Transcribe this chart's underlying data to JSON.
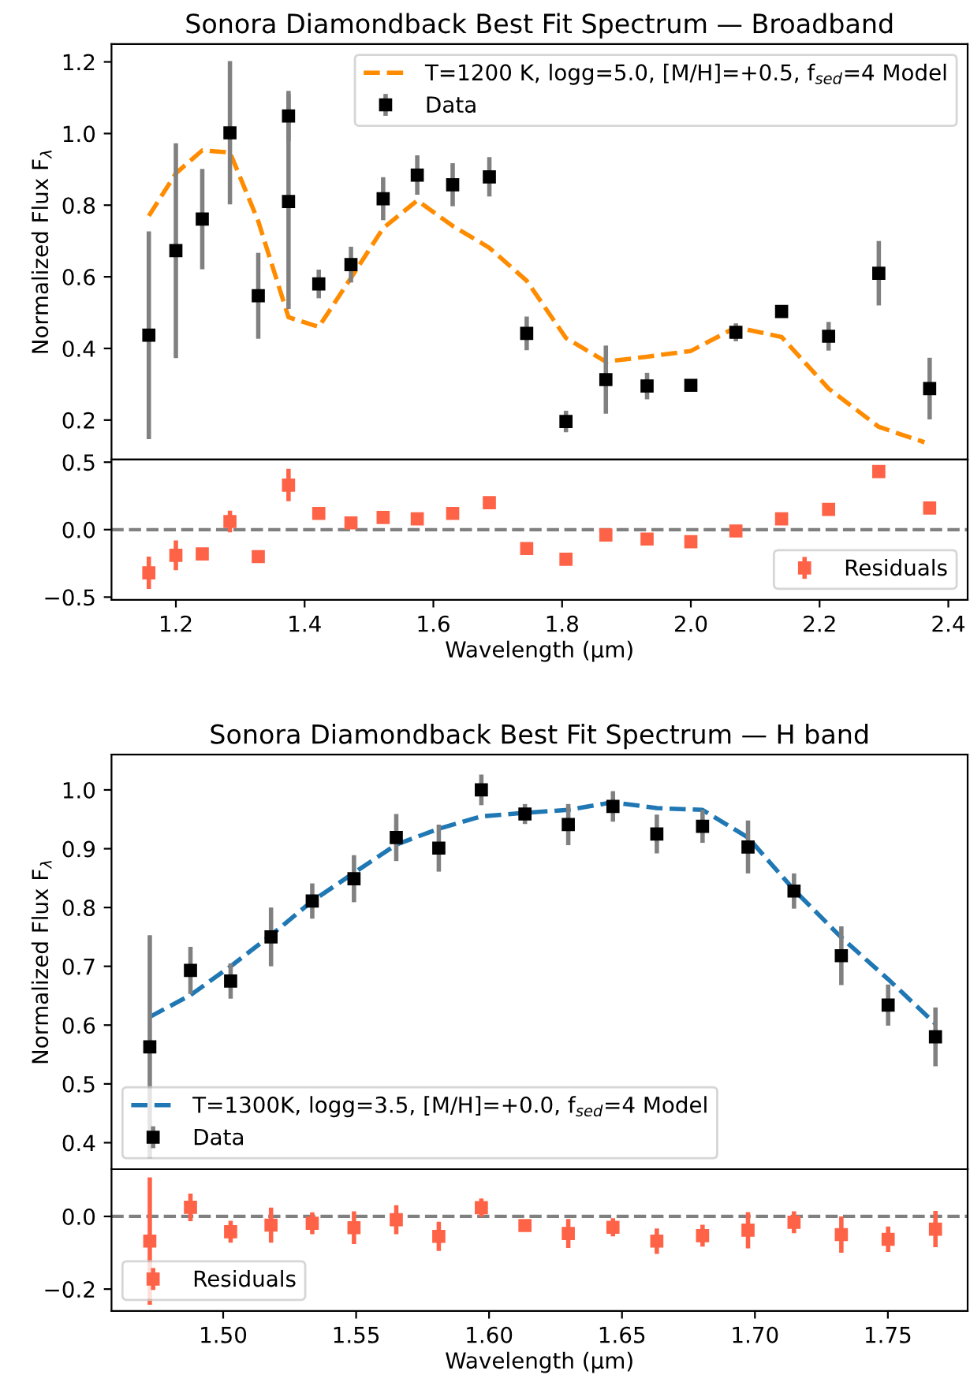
{
  "chart_data": [
    {
      "type": "scatter",
      "title": "Sonora Diamondback Best Fit Spectrum — Broadband",
      "ylabel": "Normalized Flux F$_{λ}$",
      "xlim": [
        1.1,
        2.43
      ],
      "ylim": [
        0.09,
        1.25
      ],
      "xticks": [
        1.2,
        1.4,
        1.6,
        1.8,
        2.0,
        2.2,
        2.4
      ],
      "yticks": [
        {
          "value": 0.2,
          "label": "0.2"
        },
        {
          "value": 0.4,
          "label": "0.4"
        },
        {
          "value": 0.6,
          "label": "0.6"
        },
        {
          "value": 0.8,
          "label": "0.8"
        },
        {
          "value": 1.0,
          "label": "1.0"
        },
        {
          "value": 1.2,
          "label": "1.2"
        }
      ],
      "tick_labels": "y",
      "legend": "top right",
      "series": [
        {
          "type": "line",
          "name": "T=1200 K, logg=5.0, [M/H]=+0.5, f$_{sed}$=4 Model",
          "color": "#ff8c00",
          "line_style": "dashed",
          "marker": "none",
          "x": [
            1.158,
            1.2,
            1.241,
            1.284,
            1.328,
            1.375,
            1.422,
            1.472,
            1.522,
            1.575,
            1.63,
            1.687,
            1.745,
            1.806,
            1.868,
            1.932,
            2.0,
            2.07,
            2.141,
            2.214,
            2.292,
            2.363
          ],
          "values": [
            0.77,
            0.889,
            0.953,
            0.947,
            0.755,
            0.487,
            0.46,
            0.597,
            0.736,
            0.813,
            0.742,
            0.681,
            0.589,
            0.429,
            0.363,
            0.377,
            0.393,
            0.459,
            0.432,
            0.288,
            0.181,
            0.138
          ]
        },
        {
          "name": "Data",
          "color": "#000000",
          "marker": "square",
          "x": [
            1.158,
            1.2,
            1.241,
            1.284,
            1.328,
            1.375,
            1.375,
            1.422,
            1.472,
            1.522,
            1.575,
            1.63,
            1.687,
            1.745,
            1.806,
            1.868,
            1.932,
            2.0,
            2.07,
            2.141,
            2.214,
            2.292,
            2.371
          ],
          "values": [
            0.437,
            0.673,
            0.761,
            1.002,
            0.547,
            1.049,
            0.81,
            0.58,
            0.634,
            0.818,
            0.884,
            0.857,
            0.879,
            0.442,
            0.196,
            0.313,
            0.295,
            0.297,
            0.445,
            0.503,
            0.434,
            0.61,
            0.288
          ],
          "errors": [
            0.29,
            0.3,
            0.14,
            0.2,
            0.12,
            0.07,
            0.3,
            0.04,
            0.05,
            0.06,
            0.055,
            0.06,
            0.055,
            0.047,
            0.03,
            0.095,
            0.037,
            0.015,
            0.025,
            0.01,
            0.04,
            0.09,
            0.086
          ]
        }
      ]
    },
    {
      "type": "scatter",
      "xlabel": "Wavelength (μm)",
      "xlim": [
        1.1,
        2.43
      ],
      "ylim": [
        -0.52,
        0.52
      ],
      "xticks": [
        {
          "value": 1.2,
          "label": "1.2"
        },
        {
          "value": 1.4,
          "label": "1.4"
        },
        {
          "value": 1.6,
          "label": "1.6"
        },
        {
          "value": 1.8,
          "label": "1.8"
        },
        {
          "value": 2.0,
          "label": "2.0"
        },
        {
          "value": 2.2,
          "label": "2.2"
        },
        {
          "value": 2.4,
          "label": "2.4"
        }
      ],
      "yticks": [
        {
          "value": -0.5,
          "label": "−0.5"
        },
        {
          "value": 0.0,
          "label": "0.0"
        },
        {
          "value": 0.5,
          "label": "0.5"
        }
      ],
      "legend": "bottom right",
      "ref_lines": [
        {
          "axis": "y",
          "value": 0,
          "color": "#808080",
          "line_style": "dashed"
        }
      ],
      "series": [
        {
          "name": "Residuals",
          "color": "#ff6347",
          "marker": "square",
          "x": [
            1.158,
            1.2,
            1.241,
            1.284,
            1.328,
            1.375,
            1.422,
            1.472,
            1.522,
            1.575,
            1.63,
            1.687,
            1.745,
            1.806,
            1.868,
            1.932,
            2.0,
            2.07,
            2.141,
            2.214,
            2.292,
            2.371
          ],
          "values": [
            -0.32,
            -0.19,
            -0.18,
            0.06,
            -0.2,
            0.33,
            0.12,
            0.05,
            0.09,
            0.08,
            0.12,
            0.2,
            -0.14,
            -0.22,
            -0.04,
            -0.07,
            -0.09,
            -0.01,
            0.08,
            0.15,
            0.43,
            0.16
          ],
          "errors": [
            0.12,
            0.11,
            0.04,
            0.08,
            0.03,
            0.12,
            null,
            null,
            null,
            null,
            null,
            null,
            null,
            null,
            0.02,
            null,
            null,
            null,
            null,
            null,
            null,
            null
          ]
        }
      ]
    },
    {
      "type": "scatter",
      "title": "Sonora Diamondback Best Fit Spectrum — H band",
      "ylabel": "Normalized Flux F$_{λ}$",
      "xlim": [
        1.458,
        1.78
      ],
      "ylim": [
        0.355,
        1.06
      ],
      "xticks": [
        1.5,
        1.55,
        1.6,
        1.65,
        1.7,
        1.75
      ],
      "yticks": [
        {
          "value": 0.4,
          "label": "0.4"
        },
        {
          "value": 0.5,
          "label": "0.5"
        },
        {
          "value": 0.6,
          "label": "0.6"
        },
        {
          "value": 0.7,
          "label": "0.7"
        },
        {
          "value": 0.8,
          "label": "0.8"
        },
        {
          "value": 0.9,
          "label": "0.9"
        },
        {
          "value": 1.0,
          "label": "1.0"
        }
      ],
      "tick_labels": "y",
      "legend": "bottom left",
      "series": [
        {
          "type": "line",
          "name": "T=1300K, logg=3.5, [M/H]=+0.0, f$_{sed}$=4 Model",
          "color": "#1f77b4",
          "line_style": "dashed",
          "marker": "none",
          "x": [
            1.4724,
            1.4877,
            1.5028,
            1.518,
            1.5335,
            1.5492,
            1.5651,
            1.5811,
            1.5971,
            1.6135,
            1.6298,
            1.6466,
            1.6631,
            1.6803,
            1.6974,
            1.7147,
            1.7325,
            1.7501,
            1.7679
          ],
          "values": [
            0.614,
            0.651,
            0.7,
            0.753,
            0.811,
            0.859,
            0.907,
            0.934,
            0.955,
            0.961,
            0.966,
            0.979,
            0.969,
            0.966,
            0.919,
            0.83,
            0.749,
            0.678,
            0.602
          ]
        },
        {
          "name": "Data",
          "color": "#000000",
          "marker": "square",
          "x": [
            1.4724,
            1.4877,
            1.5028,
            1.518,
            1.5335,
            1.5492,
            1.5651,
            1.5811,
            1.5971,
            1.6135,
            1.6298,
            1.6466,
            1.6631,
            1.6803,
            1.6974,
            1.7147,
            1.7325,
            1.7501,
            1.7679
          ],
          "values": [
            0.563,
            0.693,
            0.675,
            0.75,
            0.811,
            0.849,
            0.919,
            0.901,
            1.0,
            0.959,
            0.941,
            0.972,
            0.925,
            0.938,
            0.903,
            0.828,
            0.718,
            0.634,
            0.58
          ],
          "errors": [
            0.19,
            0.04,
            0.03,
            0.05,
            0.03,
            0.04,
            0.04,
            0.04,
            0.026,
            0.017,
            0.035,
            0.026,
            0.033,
            0.028,
            0.045,
            0.03,
            0.05,
            0.035,
            0.05
          ]
        }
      ]
    },
    {
      "type": "scatter",
      "xlabel": "Wavelength (μm)",
      "xlim": [
        1.458,
        1.78
      ],
      "ylim": [
        -0.26,
        0.13
      ],
      "xticks": [
        {
          "value": 1.5,
          "label": "1.50"
        },
        {
          "value": 1.55,
          "label": "1.55"
        },
        {
          "value": 1.6,
          "label": "1.60"
        },
        {
          "value": 1.65,
          "label": "1.65"
        },
        {
          "value": 1.7,
          "label": "1.70"
        },
        {
          "value": 1.75,
          "label": "1.75"
        }
      ],
      "yticks": [
        {
          "value": -0.2,
          "label": "−0.2"
        },
        {
          "value": 0.0,
          "label": "0.0"
        }
      ],
      "legend": "bottom left",
      "ref_lines": [
        {
          "axis": "y",
          "value": 0,
          "color": "#808080",
          "line_style": "dashed"
        }
      ],
      "series": [
        {
          "name": "Residuals",
          "color": "#ff6347",
          "marker": "square",
          "x": [
            1.4724,
            1.4877,
            1.5028,
            1.518,
            1.5335,
            1.5492,
            1.5651,
            1.5811,
            1.5971,
            1.6135,
            1.6298,
            1.6466,
            1.6631,
            1.6803,
            1.6974,
            1.7147,
            1.7325,
            1.7501,
            1.7679
          ],
          "values": [
            -0.068,
            0.025,
            -0.042,
            -0.024,
            -0.019,
            -0.031,
            -0.009,
            -0.055,
            0.024,
            -0.025,
            -0.047,
            -0.03,
            -0.068,
            -0.053,
            -0.038,
            -0.016,
            -0.05,
            -0.063,
            -0.035
          ],
          "errors": [
            0.175,
            0.038,
            0.03,
            0.048,
            0.03,
            0.045,
            0.04,
            0.04,
            0.025,
            0.015,
            0.04,
            0.025,
            0.035,
            0.03,
            0.05,
            0.03,
            0.05,
            0.035,
            0.05
          ]
        }
      ]
    }
  ]
}
